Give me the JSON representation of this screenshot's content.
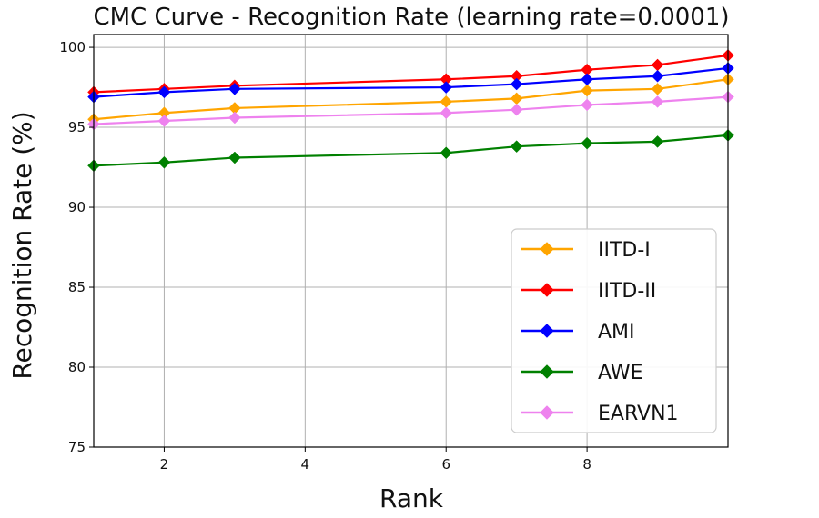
{
  "chart_data": {
    "type": "line",
    "title": "CMC Curve - Recognition Rate (learning rate=0.0001)",
    "xlabel": "Rank",
    "ylabel": "Recognition Rate (%)",
    "xlim": [
      1,
      10
    ],
    "ylim": [
      75,
      100.8
    ],
    "x_ticks": [
      2,
      4,
      6,
      8
    ],
    "y_ticks": [
      75,
      80,
      85,
      90,
      95,
      100
    ],
    "grid": true,
    "legend_position": "lower-right",
    "x": [
      1,
      2,
      3,
      6,
      7,
      8,
      9,
      10
    ],
    "series": [
      {
        "name": "IITD-I",
        "color": "#ffa500",
        "marker": "diamond",
        "values": [
          95.5,
          95.9,
          96.2,
          96.6,
          96.8,
          97.3,
          97.4,
          98.0
        ]
      },
      {
        "name": "IITD-II",
        "color": "#ff0000",
        "marker": "diamond",
        "values": [
          97.2,
          97.4,
          97.6,
          98.0,
          98.2,
          98.6,
          98.9,
          99.5
        ]
      },
      {
        "name": "AMI",
        "color": "#0000ff",
        "marker": "diamond",
        "values": [
          96.9,
          97.2,
          97.4,
          97.5,
          97.7,
          98.0,
          98.2,
          98.7
        ]
      },
      {
        "name": "AWE",
        "color": "#008000",
        "marker": "diamond",
        "values": [
          92.6,
          92.8,
          93.1,
          93.4,
          93.8,
          94.0,
          94.1,
          94.5
        ]
      },
      {
        "name": "EARVN1",
        "color": "#ee82ee",
        "marker": "diamond",
        "values": [
          95.2,
          95.4,
          95.6,
          95.9,
          96.1,
          96.4,
          96.6,
          96.9
        ]
      }
    ]
  }
}
